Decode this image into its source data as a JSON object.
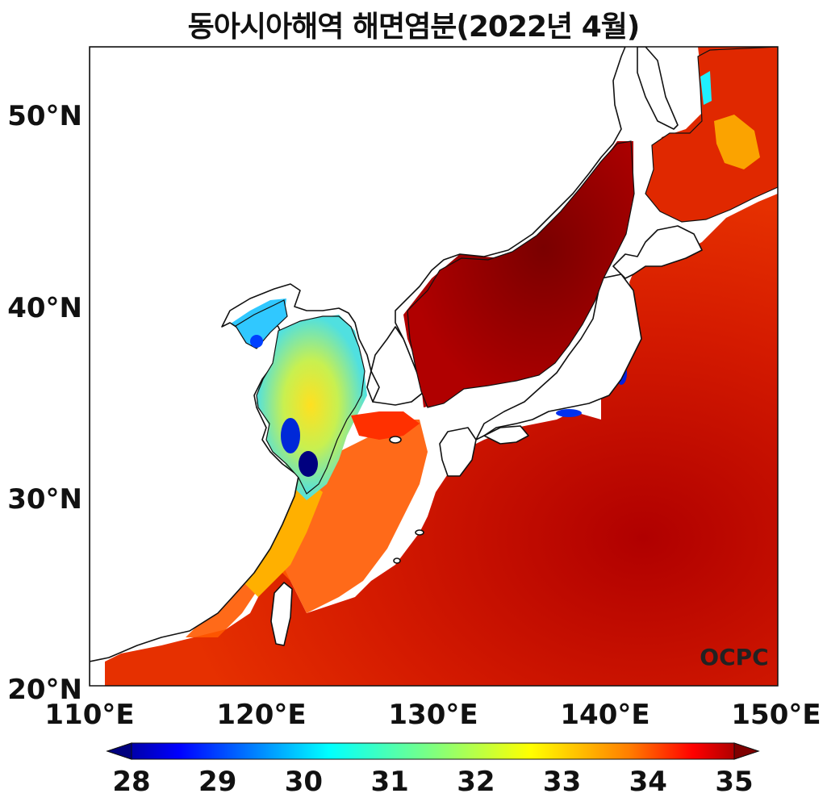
{
  "title": "동아시아해역 해면염분(2022년 4월)",
  "map": {
    "lat_labels": [
      "50°N",
      "40°N",
      "30°N",
      "20°N"
    ],
    "lon_labels": [
      "110°E",
      "120°E",
      "130°E",
      "140°E",
      "150°E"
    ],
    "lon_range": [
      110,
      150
    ],
    "lat_range": [
      20,
      53.5
    ],
    "watermark": "OCPC"
  },
  "colorbar": {
    "ticks": [
      "28",
      "29",
      "30",
      "31",
      "32",
      "33",
      "34",
      "35"
    ],
    "min": 28,
    "max": 35,
    "colormap": "jet",
    "extend": "both",
    "colors": [
      "#00007f",
      "#0000ff",
      "#007fff",
      "#00ffff",
      "#7fff7f",
      "#ffff00",
      "#ff7f00",
      "#ff0000",
      "#7f0000"
    ]
  }
}
